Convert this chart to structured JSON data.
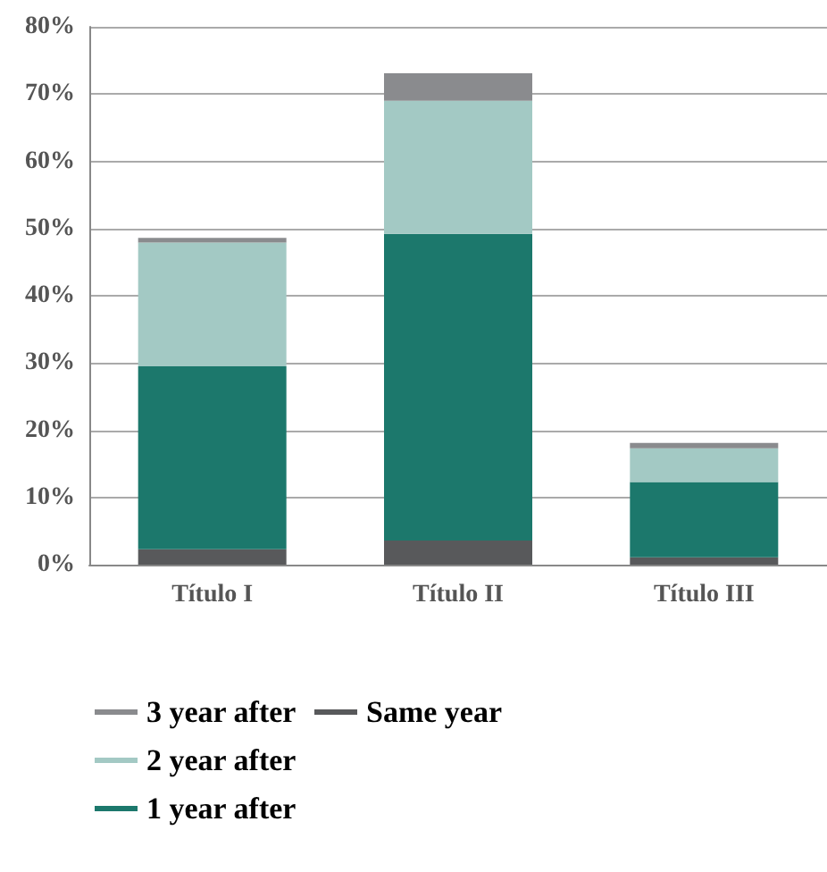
{
  "chart_data": {
    "type": "bar",
    "stacked": true,
    "categories": [
      "Título I",
      "Título II",
      "Título III"
    ],
    "series": [
      {
        "name": "Same year",
        "color": "#58595b",
        "values": [
          2.3,
          3.6,
          1.1
        ]
      },
      {
        "name": "1 year after",
        "color": "#1c786c",
        "values": [
          27.2,
          45.6,
          11.2
        ]
      },
      {
        "name": "2 year after",
        "color": "#a3c9c4",
        "values": [
          18.4,
          19.8,
          5.0
        ]
      },
      {
        "name": "3 year after",
        "color": "#8a8b8e",
        "values": [
          0.7,
          4.1,
          0.8
        ]
      }
    ],
    "ylim": [
      0,
      80
    ],
    "yticks": [
      {
        "value": 0,
        "label": "0%"
      },
      {
        "value": 10,
        "label": "10%"
      },
      {
        "value": 20,
        "label": "20%"
      },
      {
        "value": 30,
        "label": "30%"
      },
      {
        "value": 40,
        "label": "40%"
      },
      {
        "value": 50,
        "label": "50%"
      },
      {
        "value": 60,
        "label": "60%"
      },
      {
        "value": 70,
        "label": "70%"
      },
      {
        "value": 80,
        "label": "80%"
      }
    ],
    "grid": "y",
    "legend": "bottom left"
  }
}
